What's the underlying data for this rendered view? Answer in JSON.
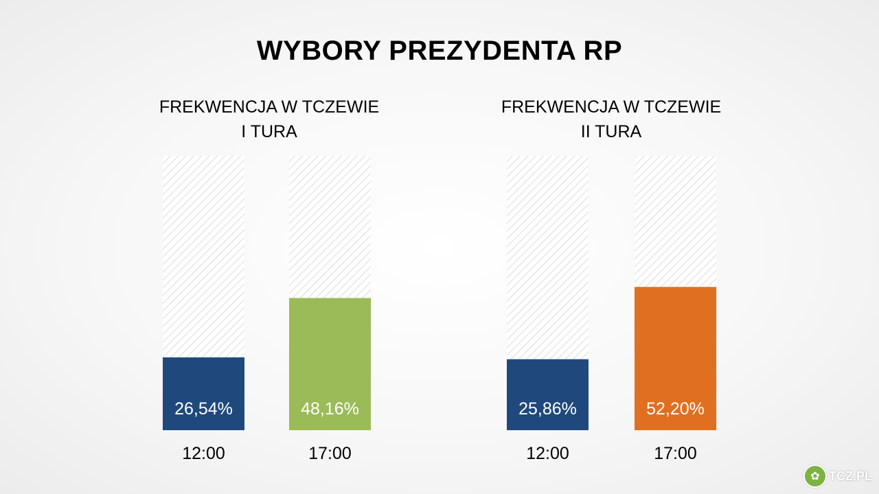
{
  "title": "WYBORY PREZYDENTA RP",
  "chart_data": [
    {
      "type": "bar",
      "title_lines": [
        "FREKWENCJA W TCZEWIE",
        "I TURA"
      ],
      "categories": [
        "12:00",
        "17:00"
      ],
      "values": [
        26.54,
        48.16
      ],
      "value_labels": [
        "26,54%",
        "48,16%"
      ],
      "colors": [
        "#1f497d",
        "#9bbb59"
      ],
      "ylim": [
        0,
        100
      ],
      "background_fill": "hatched"
    },
    {
      "type": "bar",
      "title_lines": [
        "FREKWENCJA W TCZEWIE",
        "II TURA"
      ],
      "categories": [
        "12:00",
        "17:00"
      ],
      "values": [
        25.86,
        52.2
      ],
      "value_labels": [
        "25,86%",
        "52,20%"
      ],
      "colors": [
        "#1f497d",
        "#e07020"
      ],
      "ylim": [
        0,
        100
      ],
      "background_fill": "hatched"
    }
  ],
  "logo": {
    "icon": "tcz-logo-icon",
    "text": "TCZ.PL",
    "color": "#7cb342"
  }
}
